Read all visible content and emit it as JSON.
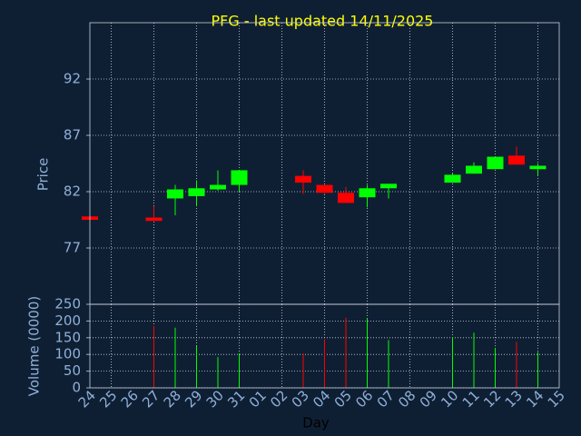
{
  "chart_data": [
    {
      "type": "candlestick",
      "title": "PFG - last updated 14/11/2025",
      "ylabel": "Price",
      "open": [
        79.8,
        null,
        null,
        79.7,
        81.4,
        81.6,
        82.2,
        82.6,
        null,
        null,
        83.4,
        82.6,
        81.9,
        81.5,
        82.3,
        null,
        null,
        82.8,
        83.6,
        84.0,
        85.2,
        84.0,
        null
      ],
      "high": [
        79.8,
        null,
        null,
        80.7,
        82.6,
        83.0,
        83.9,
        83.9,
        null,
        null,
        83.9,
        82.6,
        82.4,
        82.6,
        82.7,
        null,
        null,
        83.6,
        84.6,
        85.1,
        86.0,
        84.5,
        null
      ],
      "low": [
        79.5,
        null,
        null,
        79.4,
        79.9,
        80.7,
        82.1,
        82.0,
        null,
        null,
        81.8,
        81.8,
        81.0,
        80.6,
        81.4,
        null,
        null,
        82.8,
        83.6,
        84.0,
        84.4,
        83.4,
        null
      ],
      "close": [
        79.5,
        null,
        null,
        79.4,
        82.2,
        82.3,
        82.6,
        83.9,
        null,
        null,
        82.8,
        81.9,
        81.0,
        82.3,
        82.7,
        null,
        null,
        83.5,
        84.3,
        85.1,
        84.4,
        84.3,
        null
      ],
      "up_color": "#00ff00",
      "down_color": "#ff0000",
      "ylim": [
        72,
        97
      ],
      "yticks": [
        77,
        82,
        87,
        92
      ],
      "grid": true
    },
    {
      "type": "bar",
      "xlabel": "Day",
      "ylabel": "Volume (0000)",
      "categories": [
        "24",
        "25",
        "26",
        "27",
        "28",
        "29",
        "30",
        "31",
        "01",
        "02",
        "03",
        "04",
        "05",
        "06",
        "07",
        "08",
        "09",
        "10",
        "11",
        "12",
        "13",
        "14",
        "15"
      ],
      "values": [
        null,
        null,
        null,
        185,
        180,
        125,
        92,
        103,
        null,
        null,
        103,
        145,
        210,
        208,
        143,
        null,
        null,
        152,
        165,
        120,
        138,
        107,
        null
      ],
      "ylim": [
        0,
        250
      ],
      "yticks": [
        0,
        50,
        100,
        150,
        200,
        250
      ],
      "grid": true
    }
  ]
}
